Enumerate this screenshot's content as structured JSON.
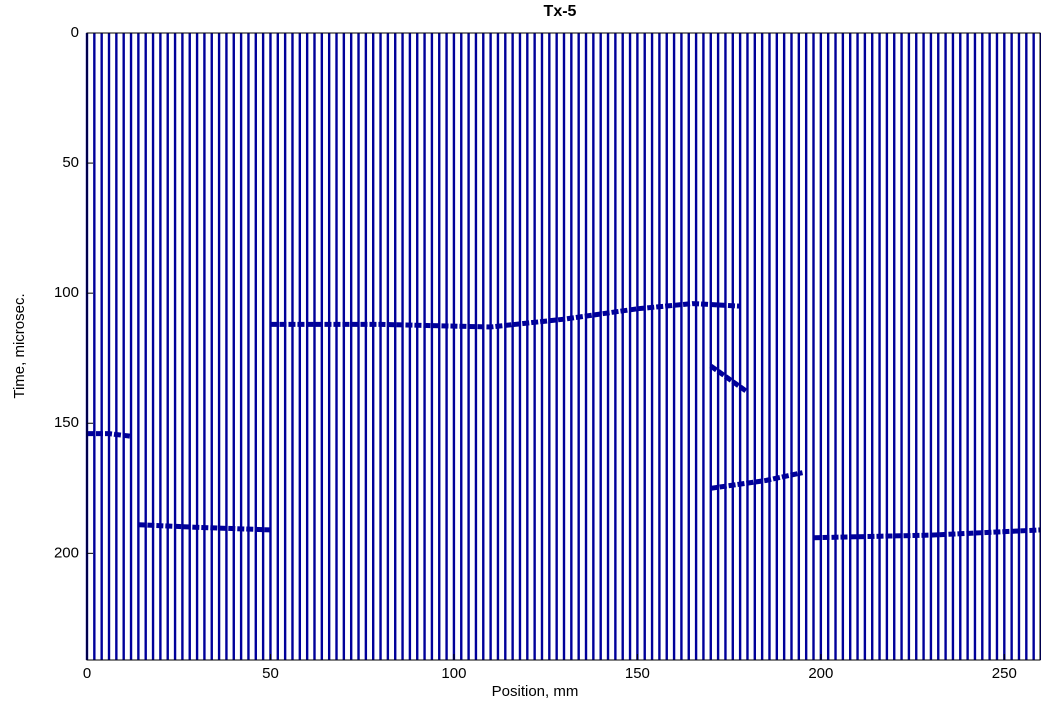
{
  "chart_data": {
    "type": "wiggle",
    "title": "Tx-5",
    "x_label": "Position, mm",
    "y_label": "Time, microsec.",
    "xlim": [
      0,
      260
    ],
    "ylim": [
      0,
      241
    ],
    "y_inverted": true,
    "xticks": [
      0,
      50,
      100,
      150,
      200,
      250
    ],
    "yticks": [
      0,
      50,
      100,
      150,
      200
    ],
    "color": "#00009a",
    "traces": [
      0,
      2,
      4,
      6,
      8,
      10,
      12,
      14,
      16,
      18,
      20,
      22,
      24,
      26,
      28,
      30,
      32,
      34,
      36,
      38,
      40,
      42,
      44,
      46,
      48,
      50,
      52,
      54,
      56,
      58,
      60,
      62,
      64,
      66,
      68,
      70,
      72,
      74,
      76,
      78,
      80,
      82,
      84,
      86,
      88,
      90,
      92,
      94,
      96,
      98,
      100,
      102,
      104,
      106,
      108,
      110,
      112,
      114,
      116,
      118,
      120,
      122,
      124,
      126,
      128,
      130,
      132,
      134,
      136,
      138,
      140,
      142,
      144,
      146,
      148,
      150,
      152,
      154,
      156,
      158,
      160,
      162,
      164,
      166,
      168,
      170,
      172,
      174,
      176,
      178,
      180,
      182,
      184,
      186,
      188,
      190,
      192,
      194,
      196,
      198,
      200,
      202,
      204,
      206,
      208,
      210,
      212,
      214,
      216,
      218,
      220,
      222,
      224,
      226,
      228,
      230,
      232,
      234,
      236,
      238,
      240,
      242,
      244,
      246,
      248,
      250,
      252,
      254,
      256,
      258,
      260
    ],
    "series": [
      {
        "x": [
          0,
          6,
          12
        ],
        "values": [
          154,
          154,
          155
        ]
      },
      {
        "x": [
          14,
          30,
          50
        ],
        "values": [
          189,
          190,
          191
        ]
      },
      {
        "x": [
          50,
          80,
          110,
          130,
          150,
          165,
          178
        ],
        "values": [
          112,
          112,
          113,
          110,
          106,
          104,
          105
        ]
      },
      {
        "x": [
          170,
          185,
          195
        ],
        "values": [
          175,
          172,
          169
        ]
      },
      {
        "x": [
          170,
          180
        ],
        "values": [
          128,
          138
        ]
      },
      {
        "x": [
          198,
          230,
          260
        ],
        "values": [
          194,
          193,
          191
        ]
      }
    ]
  }
}
